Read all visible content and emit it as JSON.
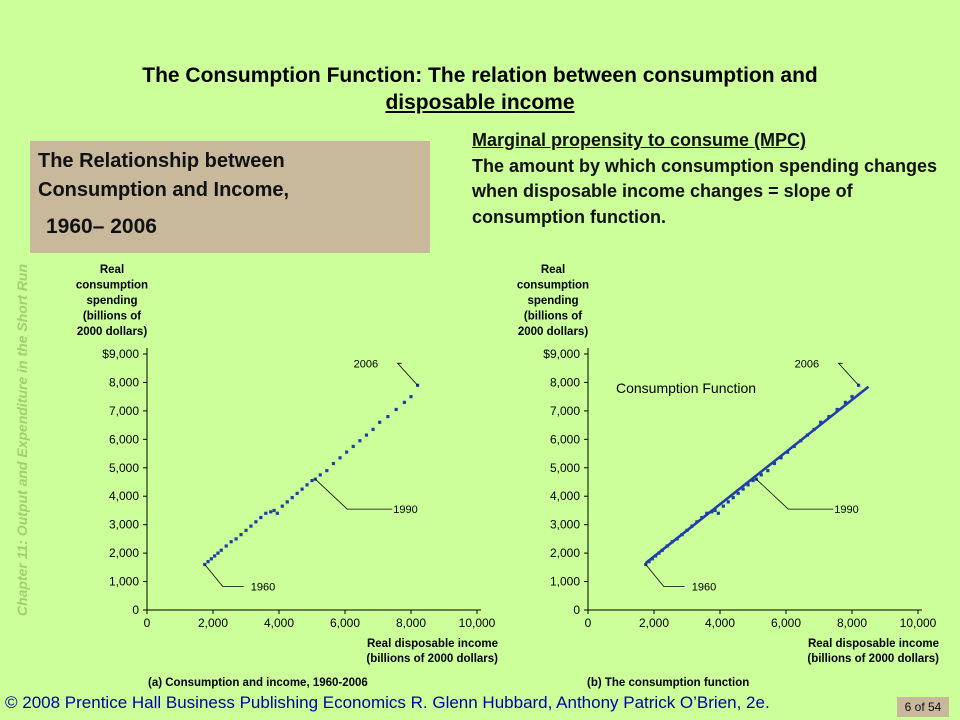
{
  "slide": {
    "title_line1": "The Consumption Function: The relation between consumption and",
    "title_line2": "disposable income",
    "box_line1": "The Relationship between",
    "box_line2": "Consumption and Income,",
    "box_line3": "1960– 2006",
    "mpc_term": "Marginal propensity to consume (MPC)",
    "mpc_def": "The amount by which consumption spending changes when disposable income changes = slope of consumption function.",
    "side_label": "Chapter 11: Output and Expenditure in the Short Run",
    "footer": "© 2008 Prentice Hall Business Publishing   Economics  R. Glenn Hubbard, Anthony Patrick O’Brien, 2e.",
    "page": "6 of 54"
  },
  "chart_data": [
    {
      "type": "scatter",
      "caption": "(a) Consumption and income, 1960-2006",
      "ylabel_lines": [
        "Real",
        "consumption",
        "spending",
        "(billions of",
        "2000 dollars)"
      ],
      "xlabel_lines": [
        "Real disposable income",
        "(billions of 2000 dollars)"
      ],
      "xlim": [
        0,
        10000
      ],
      "ylim": [
        0,
        9000
      ],
      "xticks": [
        "0",
        "2,000",
        "4,000",
        "6,000",
        "8,000",
        "10,000"
      ],
      "yticks": [
        "0",
        "1,000",
        "2,000",
        "3,000",
        "4,000",
        "5,000",
        "6,000",
        "7,000",
        "8,000",
        "$9,000"
      ],
      "annotations": [
        {
          "text": "1960",
          "x": 1750,
          "y": 1600
        },
        {
          "text": "1990",
          "x": 5100,
          "y": 4600
        },
        {
          "text": "2006",
          "x": 8200,
          "y": 7900
        }
      ],
      "x": [
        1750,
        1850,
        1950,
        2050,
        2150,
        2250,
        2400,
        2550,
        2700,
        2850,
        3000,
        3150,
        3300,
        3450,
        3600,
        3750,
        3850,
        3950,
        4100,
        4250,
        4400,
        4550,
        4700,
        4850,
        5000,
        5100,
        5250,
        5450,
        5650,
        5850,
        6050,
        6250,
        6450,
        6650,
        6850,
        7050,
        7300,
        7550,
        7800,
        8000,
        8200
      ],
      "y": [
        1600,
        1700,
        1800,
        1900,
        2000,
        2100,
        2250,
        2400,
        2500,
        2650,
        2800,
        2950,
        3100,
        3250,
        3400,
        3450,
        3500,
        3400,
        3650,
        3800,
        3950,
        4100,
        4250,
        4400,
        4550,
        4600,
        4750,
        4900,
        5150,
        5350,
        5550,
        5750,
        5950,
        6150,
        6350,
        6600,
        6800,
        7050,
        7300,
        7500,
        7900
      ]
    },
    {
      "type": "scatter",
      "caption": "(b) The consumption function",
      "ylabel_lines": [
        "Real",
        "consumption",
        "spending",
        "(billions of",
        "2000 dollars)"
      ],
      "xlabel_lines": [
        "Real disposable income",
        "(billions of 2000 dollars)"
      ],
      "xlim": [
        0,
        10000
      ],
      "ylim": [
        0,
        9000
      ],
      "xticks": [
        "0",
        "2,000",
        "4,000",
        "6,000",
        "8,000",
        "10,000"
      ],
      "yticks": [
        "0",
        "1,000",
        "2,000",
        "3,000",
        "4,000",
        "5,000",
        "6,000",
        "7,000",
        "8,000",
        "$9,000"
      ],
      "line_label": "Consumption Function",
      "line": {
        "x": [
          1750,
          8500
        ],
        "y": [
          1650,
          7850
        ]
      },
      "line_color": "#1f3fa8",
      "annotations": [
        {
          "text": "1960",
          "x": 1750,
          "y": 1600
        },
        {
          "text": "1990",
          "x": 5100,
          "y": 4600
        },
        {
          "text": "2006",
          "x": 8200,
          "y": 7900
        }
      ],
      "x": [
        1750,
        1850,
        1950,
        2050,
        2150,
        2250,
        2400,
        2550,
        2700,
        2850,
        3000,
        3150,
        3300,
        3450,
        3600,
        3750,
        3850,
        3950,
        4100,
        4250,
        4400,
        4550,
        4700,
        4850,
        5000,
        5100,
        5250,
        5450,
        5650,
        5850,
        6050,
        6250,
        6450,
        6650,
        6850,
        7050,
        7300,
        7550,
        7800,
        8000,
        8200
      ],
      "y": [
        1600,
        1700,
        1800,
        1900,
        2000,
        2100,
        2250,
        2400,
        2500,
        2650,
        2800,
        2950,
        3100,
        3250,
        3400,
        3450,
        3500,
        3400,
        3650,
        3800,
        3950,
        4100,
        4250,
        4400,
        4550,
        4600,
        4750,
        4900,
        5150,
        5350,
        5550,
        5750,
        5950,
        6150,
        6350,
        6600,
        6800,
        7050,
        7300,
        7500,
        7900
      ]
    }
  ],
  "colors": {
    "background": "#ccff99",
    "box": "#c8b89c",
    "points": "#1f3fa8",
    "footer": "#0000aa"
  }
}
